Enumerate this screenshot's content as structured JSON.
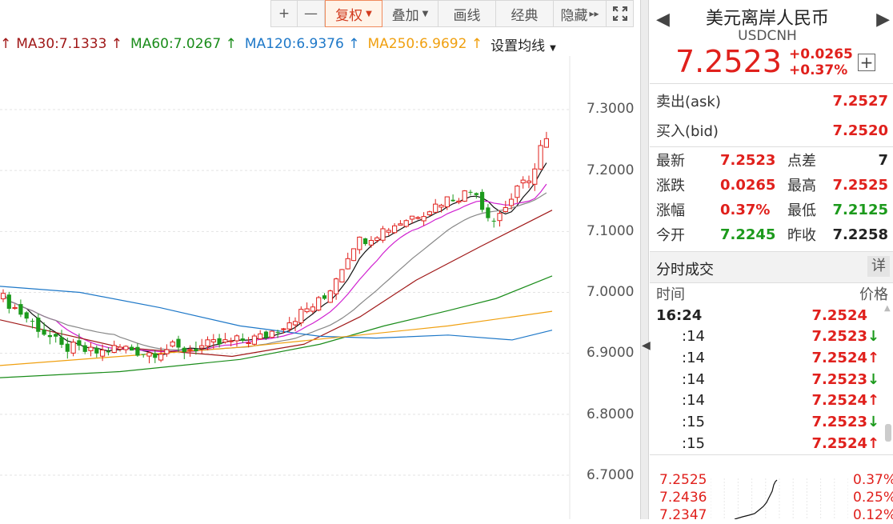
{
  "toolbar": {
    "plus": "+",
    "minus": "—",
    "fuquan": "复权",
    "diejia": "叠加",
    "huaxian": "画线",
    "jingdian": "经典",
    "yincang": "隐藏"
  },
  "ma": {
    "ma30": "MA30:7.1333",
    "ma60": "MA60:7.0267",
    "ma120": "MA120:6.9376",
    "ma250": "MA250:6.9692",
    "settings": "设置均线"
  },
  "y_ticks": [
    "7.3000",
    "7.2000",
    "7.1000",
    "7.0000",
    "6.9000",
    "6.8000",
    "6.7000"
  ],
  "quote": {
    "name": "美元离岸人民币",
    "code": "USDCNH",
    "price": "7.2523",
    "change": "+0.0265",
    "change_pct": "+0.37%",
    "ask_label": "卖出(ask)",
    "ask": "7.2527",
    "bid_label": "买入(bid)",
    "bid": "7.2520"
  },
  "stats": {
    "latest_label": "最新",
    "latest": "7.2523",
    "spread_label": "点差",
    "spread": "7",
    "chg_label": "涨跌",
    "chg": "0.0265",
    "high_label": "最高",
    "high": "7.2525",
    "pct_label": "涨幅",
    "pct": "0.37%",
    "low_label": "最低",
    "low": "7.2125",
    "open_label": "今开",
    "open": "7.2245",
    "prev_label": "昨收",
    "prev": "7.2258"
  },
  "ticks_panel": {
    "title": "分时成交",
    "detail": "详",
    "col_time": "时间",
    "col_price": "价格",
    "rows": [
      {
        "time": "16:24",
        "price": "7.2524",
        "dir": ""
      },
      {
        "time": ":14",
        "price": "7.2523",
        "dir": "down"
      },
      {
        "time": ":14",
        "price": "7.2524",
        "dir": "up"
      },
      {
        "time": ":14",
        "price": "7.2523",
        "dir": "down"
      },
      {
        "time": ":14",
        "price": "7.2524",
        "dir": "up"
      },
      {
        "time": ":15",
        "price": "7.2523",
        "dir": "down"
      },
      {
        "time": ":15",
        "price": "7.2524",
        "dir": "up"
      }
    ]
  },
  "mini": {
    "p1": "7.2525",
    "p2": "7.2436",
    "p3": "7.2347",
    "c1": "0.37%",
    "c2": "0.25%",
    "c3": "0.12%"
  },
  "colors": {
    "up": "#e0201c",
    "down": "#1c9a1c",
    "ma30": "#a01818",
    "ma60": "#1a8c1a",
    "ma120": "#1e78c8",
    "ma250": "#f0a010",
    "ma5": "#111111",
    "ma10": "#d020d0",
    "ma20": "#888888"
  }
}
